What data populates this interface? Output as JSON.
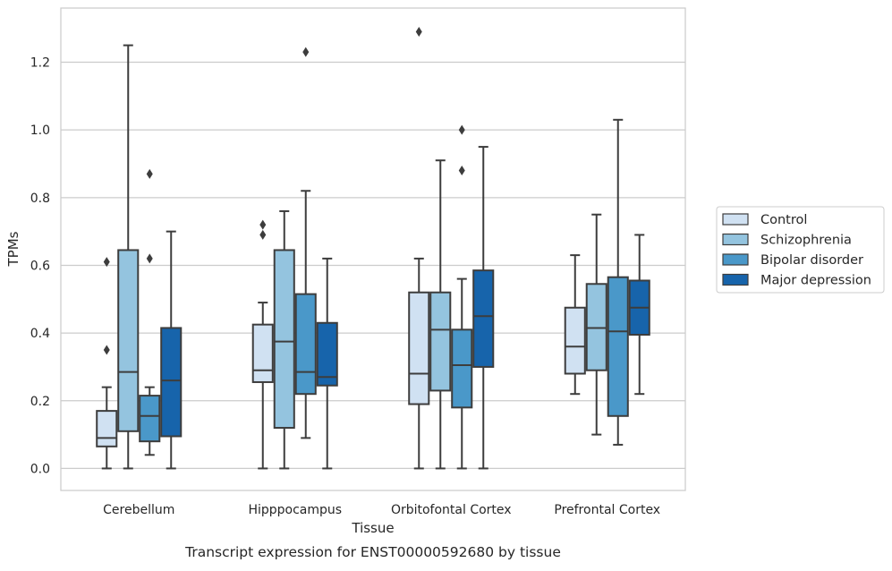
{
  "chart_data": {
    "type": "box",
    "title": "Transcript expression for ENST00000592680 by tissue",
    "xlabel": "Tissue",
    "ylabel": "TPMs",
    "ylim": [
      -0.065,
      1.36
    ],
    "yticks": [
      0.0,
      0.2,
      0.4,
      0.6,
      0.8,
      1.0,
      1.2
    ],
    "ytick_labels": [
      "0.0",
      "0.2",
      "0.4",
      "0.6",
      "0.8",
      "1.0",
      "1.2"
    ],
    "grid": "horizontal",
    "legend_position": "right",
    "categories": [
      "Cerebellum",
      "Hipppocampus",
      "Orbitofontal Cortex",
      "Prefrontal Cortex"
    ],
    "series": [
      {
        "name": "Control",
        "color": "#d0e1f2",
        "boxes": [
          {
            "whisker_low": 0.0,
            "q1": 0.065,
            "median": 0.09,
            "q3": 0.17,
            "whisker_high": 0.24,
            "outliers": [
              0.35,
              0.61
            ]
          },
          {
            "whisker_low": 0.0,
            "q1": 0.255,
            "median": 0.29,
            "q3": 0.425,
            "whisker_high": 0.49,
            "outliers": [
              0.69,
              0.72
            ]
          },
          {
            "whisker_low": 0.0,
            "q1": 0.19,
            "median": 0.28,
            "q3": 0.52,
            "whisker_high": 0.62,
            "outliers": [
              1.29
            ]
          },
          {
            "whisker_low": 0.22,
            "q1": 0.28,
            "median": 0.36,
            "q3": 0.475,
            "whisker_high": 0.63,
            "outliers": []
          }
        ]
      },
      {
        "name": "Schizophrenia",
        "color": "#94c4df",
        "boxes": [
          {
            "whisker_low": 0.0,
            "q1": 0.11,
            "median": 0.285,
            "q3": 0.645,
            "whisker_high": 1.25,
            "outliers": []
          },
          {
            "whisker_low": 0.0,
            "q1": 0.12,
            "median": 0.375,
            "q3": 0.645,
            "whisker_high": 0.76,
            "outliers": []
          },
          {
            "whisker_low": 0.0,
            "q1": 0.23,
            "median": 0.41,
            "q3": 0.52,
            "whisker_high": 0.91,
            "outliers": []
          },
          {
            "whisker_low": 0.1,
            "q1": 0.29,
            "median": 0.415,
            "q3": 0.545,
            "whisker_high": 0.75,
            "outliers": []
          }
        ]
      },
      {
        "name": "Bipolar disorder",
        "color": "#4a98c9",
        "boxes": [
          {
            "whisker_low": 0.04,
            "q1": 0.08,
            "median": 0.155,
            "q3": 0.215,
            "whisker_high": 0.24,
            "outliers": [
              0.62,
              0.87
            ]
          },
          {
            "whisker_low": 0.09,
            "q1": 0.22,
            "median": 0.285,
            "q3": 0.515,
            "whisker_high": 0.82,
            "outliers": [
              1.23
            ]
          },
          {
            "whisker_low": 0.0,
            "q1": 0.18,
            "median": 0.305,
            "q3": 0.41,
            "whisker_high": 0.56,
            "outliers": [
              0.88,
              1.0
            ]
          },
          {
            "whisker_low": 0.07,
            "q1": 0.155,
            "median": 0.405,
            "q3": 0.565,
            "whisker_high": 1.03,
            "outliers": []
          }
        ]
      },
      {
        "name": "Major depression",
        "color": "#1764ab",
        "boxes": [
          {
            "whisker_low": 0.0,
            "q1": 0.095,
            "median": 0.26,
            "q3": 0.415,
            "whisker_high": 0.7,
            "outliers": []
          },
          {
            "whisker_low": 0.0,
            "q1": 0.245,
            "median": 0.27,
            "q3": 0.43,
            "whisker_high": 0.62,
            "outliers": []
          },
          {
            "whisker_low": 0.0,
            "q1": 0.3,
            "median": 0.45,
            "q3": 0.585,
            "whisker_high": 0.95,
            "outliers": []
          },
          {
            "whisker_low": 0.22,
            "q1": 0.395,
            "median": 0.475,
            "q3": 0.555,
            "whisker_high": 0.69,
            "outliers": []
          }
        ]
      }
    ]
  }
}
